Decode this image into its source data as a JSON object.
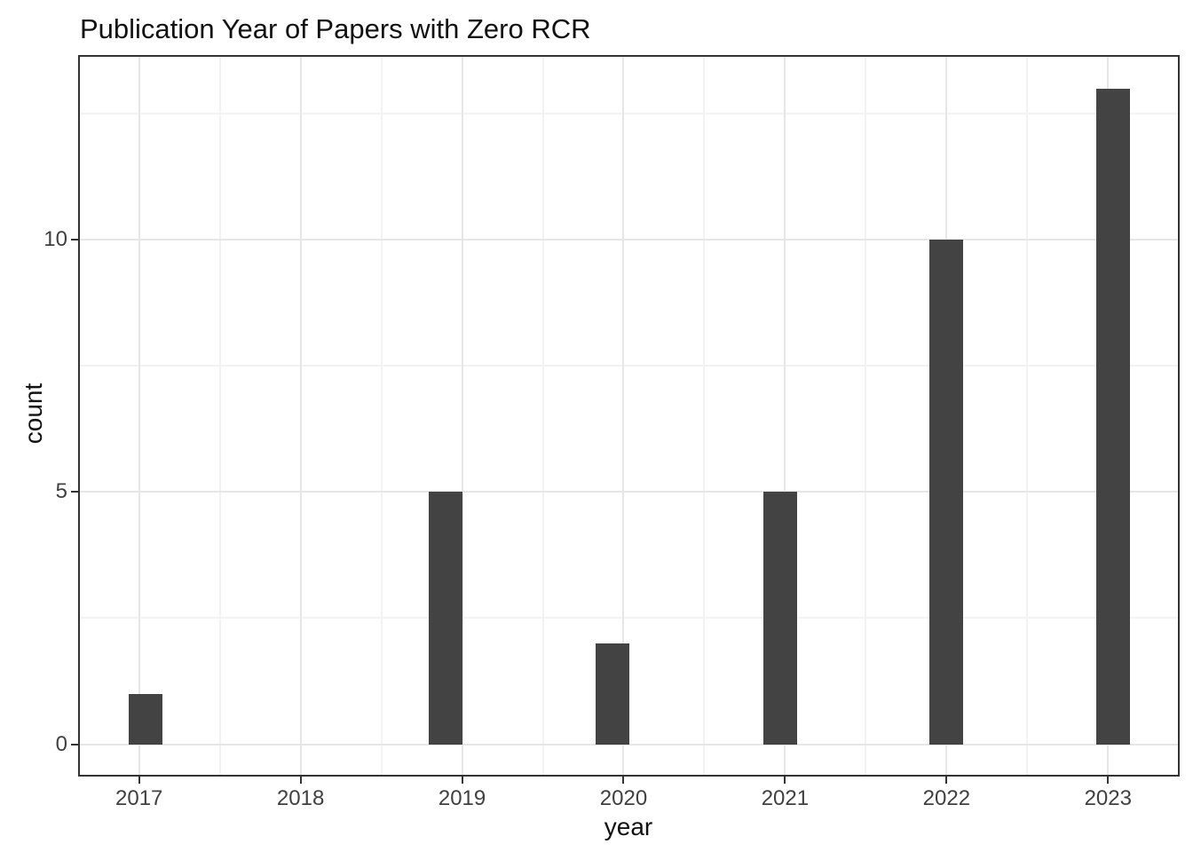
{
  "chart_data": {
    "type": "bar",
    "title": "Publication Year of Papers with Zero RCR",
    "xlabel": "year",
    "ylabel": "count",
    "x_ticks": [
      2017,
      2018,
      2019,
      2020,
      2021,
      2022,
      2023
    ],
    "y_ticks": [
      0,
      5,
      10
    ],
    "y_minor_ticks": [
      2.5,
      7.5,
      12.5
    ],
    "x_minor_ticks": [
      2017.5,
      2018.5,
      2019.5,
      2020.5,
      2021.5,
      2022.5
    ],
    "xlim": [
      2016.62,
      2023.46
    ],
    "ylim": [
      -0.65,
      13.65
    ],
    "grid": "major-and-minor",
    "legend": "none",
    "bar_color": "#434343",
    "bar_width_years": 0.208,
    "bars": [
      {
        "year": 2017,
        "count": 1,
        "x_center": 2017.04
      },
      {
        "year": 2019,
        "count": 5,
        "x_center": 2018.9
      },
      {
        "year": 2020,
        "count": 2,
        "x_center": 2019.93
      },
      {
        "year": 2021,
        "count": 5,
        "x_center": 2020.97
      },
      {
        "year": 2022,
        "count": 10,
        "x_center": 2022.0
      },
      {
        "year": 2023,
        "count": 13,
        "x_center": 2023.03
      }
    ]
  },
  "colors": {
    "panel_border": "#333333",
    "major_grid": "#e6e6e6",
    "minor_grid": "#f2f2f2",
    "tick_text": "#404040",
    "title_text": "#111111"
  }
}
